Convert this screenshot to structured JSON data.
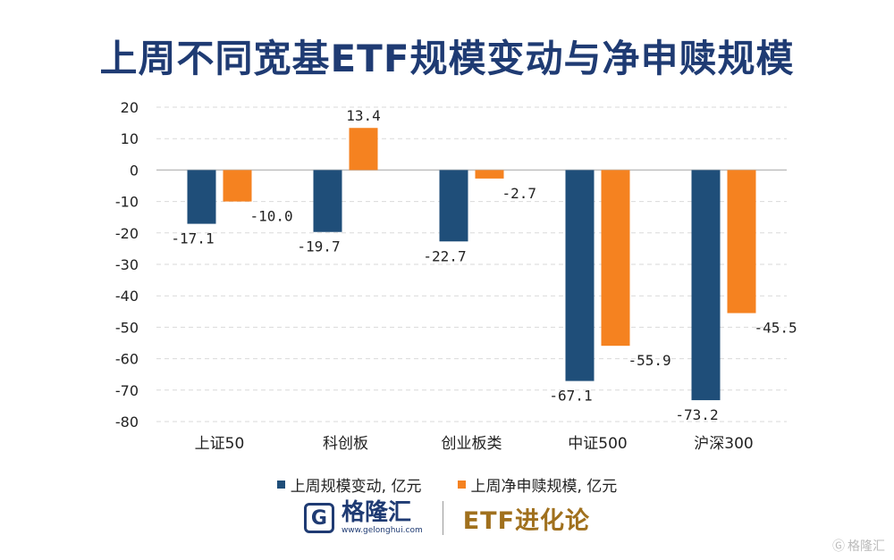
{
  "title": "上周不同宽基ETF规模变动与净申赎规模",
  "chart_data": {
    "type": "bar",
    "title": "上周不同宽基ETF规模变动与净申赎规模",
    "categories": [
      "上证50",
      "科创板",
      "创业板类",
      "中证500",
      "沪深300"
    ],
    "series": [
      {
        "name": "上周规模变动, 亿元",
        "color": "#1f4e79",
        "values": [
          -17.1,
          -19.7,
          -22.7,
          -67.1,
          -73.2
        ]
      },
      {
        "name": "上周净申赎规模, 亿元",
        "color": "#f58220",
        "values": [
          -10.0,
          13.4,
          -2.7,
          -55.9,
          -45.5
        ]
      }
    ],
    "data_labels": [
      [
        "-17.1",
        "-19.7",
        "-22.7",
        "-67.1",
        "-73.2"
      ],
      [
        "-10.0",
        "13.4",
        "-2.7",
        "-55.9",
        "-45.5"
      ]
    ],
    "ylim": [
      -80,
      20
    ],
    "yticks": [
      20,
      10,
      0,
      -10,
      -20,
      -30,
      -40,
      -50,
      -60,
      -70,
      -80
    ],
    "grid": true,
    "legend": "bottom"
  },
  "legend": [
    {
      "label": "上周规模变动, 亿元",
      "color": "#1f4e79"
    },
    {
      "label": "上周净申赎规模, 亿元",
      "color": "#f58220"
    }
  ],
  "footer": {
    "brand_name": "格隆汇",
    "brand_logo_letter": "G",
    "brand_url": "www.gelonghui.com",
    "column_name": "ETF进化论"
  },
  "watermark": "格隆汇"
}
